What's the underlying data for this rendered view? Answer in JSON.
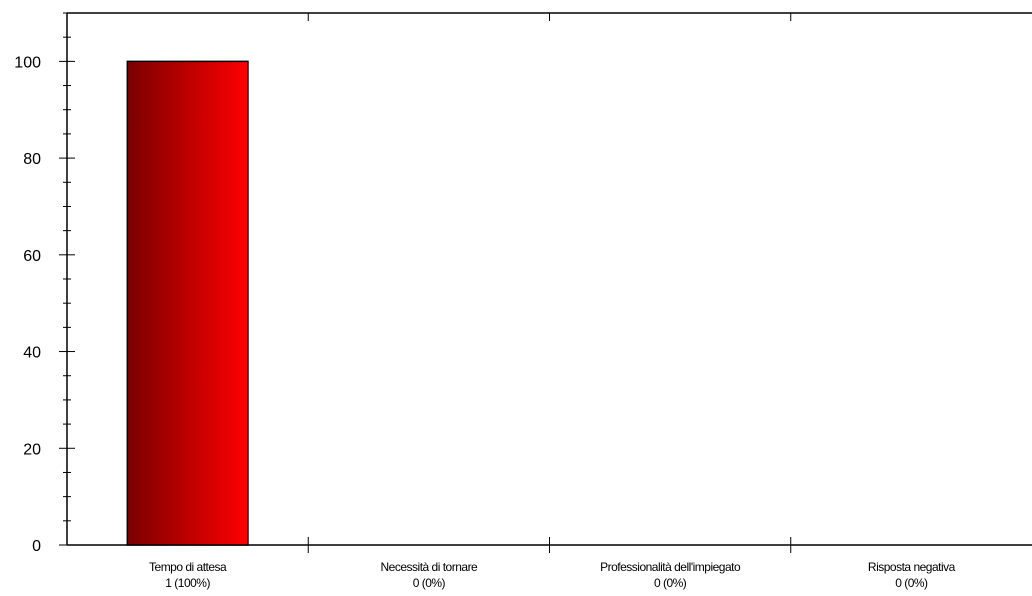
{
  "chart_data": {
    "type": "bar",
    "categories": [
      "Tempo di attesa",
      "Necessità di tornare",
      "Professionalità dell'impiegato",
      "Risposta negativa"
    ],
    "category_sublabels": [
      "1 (100%)",
      "0 (0%)",
      "0 (0%)",
      "0 (0%)"
    ],
    "values": [
      100,
      0,
      0,
      0
    ],
    "ylim": [
      0,
      110
    ],
    "yticks": [
      0,
      20,
      40,
      60,
      80,
      100
    ],
    "title": "",
    "xlabel": "",
    "ylabel": "",
    "grid": false,
    "colors": {
      "bar_dark": "#7a0000",
      "bar_light": "#ff0000",
      "axis": "#000000"
    }
  }
}
